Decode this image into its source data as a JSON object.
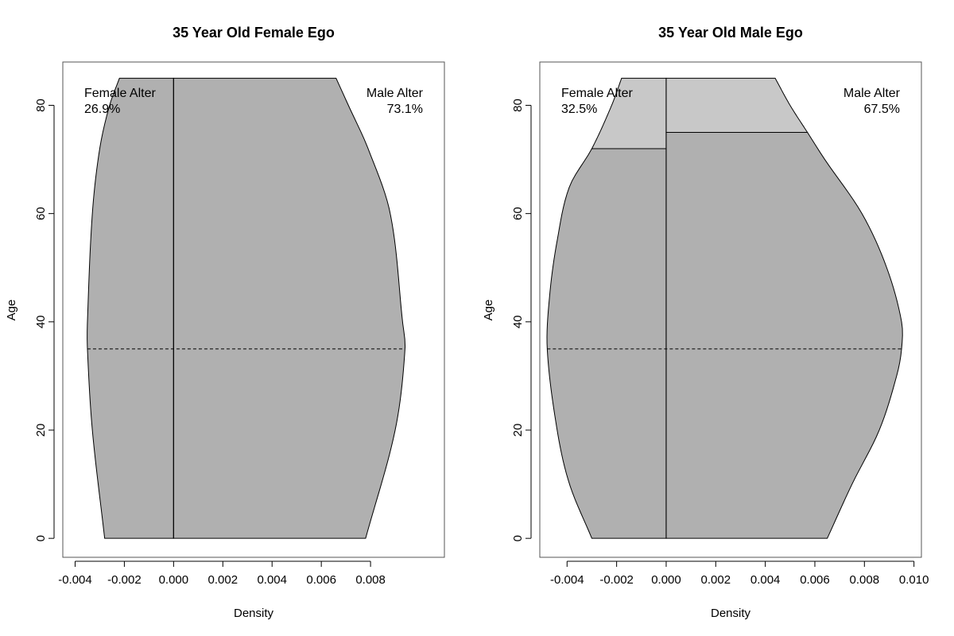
{
  "chart_data": [
    {
      "type": "area",
      "title": "35 Year Old Female Ego",
      "xlabel": "Density",
      "ylabel": "Age",
      "xlim": [
        -0.0045,
        0.011
      ],
      "ylim": [
        -3.5,
        88
      ],
      "x_ticks": [
        -0.004,
        -0.002,
        0.0,
        0.002,
        0.004,
        0.006,
        0.008
      ],
      "x_tick_labels": [
        "-0.004",
        "-0.002",
        "0.000",
        "0.002",
        "0.004",
        "0.006",
        "0.008"
      ],
      "y_ticks": [
        0,
        20,
        40,
        60,
        80
      ],
      "y_tick_labels": [
        "0",
        "20",
        "40",
        "60",
        "80"
      ],
      "ego_age": 35,
      "age_max": 85,
      "female_alter": {
        "label": "Female Alter",
        "share": "26.9%",
        "profile": [
          [
            0,
            -0.0028
          ],
          [
            20,
            -0.0033
          ],
          [
            35,
            -0.0035
          ],
          [
            40,
            -0.0035
          ],
          [
            60,
            -0.0033
          ],
          [
            72,
            -0.003
          ],
          [
            80,
            -0.0026
          ],
          [
            85,
            -0.0022
          ]
        ]
      },
      "male_alter": {
        "label": "Male Alter",
        "share": "73.1%",
        "profile": [
          [
            0,
            0.0078
          ],
          [
            20,
            0.009
          ],
          [
            35,
            0.0094
          ],
          [
            40,
            0.0093
          ],
          [
            60,
            0.0088
          ],
          [
            72,
            0.0079
          ],
          [
            80,
            0.0071
          ],
          [
            85,
            0.0066
          ]
        ]
      },
      "regions": [
        {
          "side": "female",
          "from_age": 0,
          "to_age": 85,
          "color": "#b0b0b0"
        },
        {
          "side": "male",
          "from_age": 0,
          "to_age": 85,
          "color": "#b0b0b0"
        }
      ]
    },
    {
      "type": "area",
      "title": "35 Year Old Male Ego",
      "xlabel": "Density",
      "ylabel": "Age",
      "xlim": [
        -0.0051,
        0.0103
      ],
      "ylim": [
        -3.5,
        88
      ],
      "x_ticks": [
        -0.004,
        -0.002,
        0.0,
        0.002,
        0.004,
        0.006,
        0.008,
        0.01
      ],
      "x_tick_labels": [
        "-0.004",
        "-0.002",
        "0.000",
        "0.002",
        "0.004",
        "0.006",
        "0.008",
        "0.010"
      ],
      "y_ticks": [
        0,
        20,
        40,
        60,
        80
      ],
      "y_tick_labels": [
        "0",
        "20",
        "40",
        "60",
        "80"
      ],
      "ego_age": 35,
      "age_max": 85,
      "female_alter": {
        "label": "Female Alter",
        "share": "32.5%",
        "profile": [
          [
            0,
            -0.003
          ],
          [
            10,
            -0.0039
          ],
          [
            20,
            -0.0044
          ],
          [
            35,
            -0.0048
          ],
          [
            45,
            -0.0047
          ],
          [
            55,
            -0.0044
          ],
          [
            65,
            -0.0039
          ],
          [
            72,
            -0.003
          ],
          [
            80,
            -0.0022
          ],
          [
            85,
            -0.0018
          ]
        ]
      },
      "male_alter": {
        "label": "Male Alter",
        "share": "67.5%",
        "profile": [
          [
            0,
            0.0065
          ],
          [
            10,
            0.0075
          ],
          [
            20,
            0.0086
          ],
          [
            30,
            0.0093
          ],
          [
            35,
            0.0095
          ],
          [
            40,
            0.0095
          ],
          [
            50,
            0.0089
          ],
          [
            60,
            0.0079
          ],
          [
            70,
            0.0064
          ],
          [
            75,
            0.0057
          ],
          [
            80,
            0.005
          ],
          [
            85,
            0.0044
          ]
        ]
      },
      "regions": [
        {
          "side": "female",
          "from_age": 0,
          "to_age": 72,
          "color": "#b0b0b0"
        },
        {
          "side": "female",
          "from_age": 72,
          "to_age": 85,
          "color": "#c8c8c8"
        },
        {
          "side": "male",
          "from_age": 0,
          "to_age": 75,
          "color": "#b0b0b0"
        },
        {
          "side": "male",
          "from_age": 75,
          "to_age": 85,
          "color": "#c8c8c8"
        }
      ]
    }
  ]
}
